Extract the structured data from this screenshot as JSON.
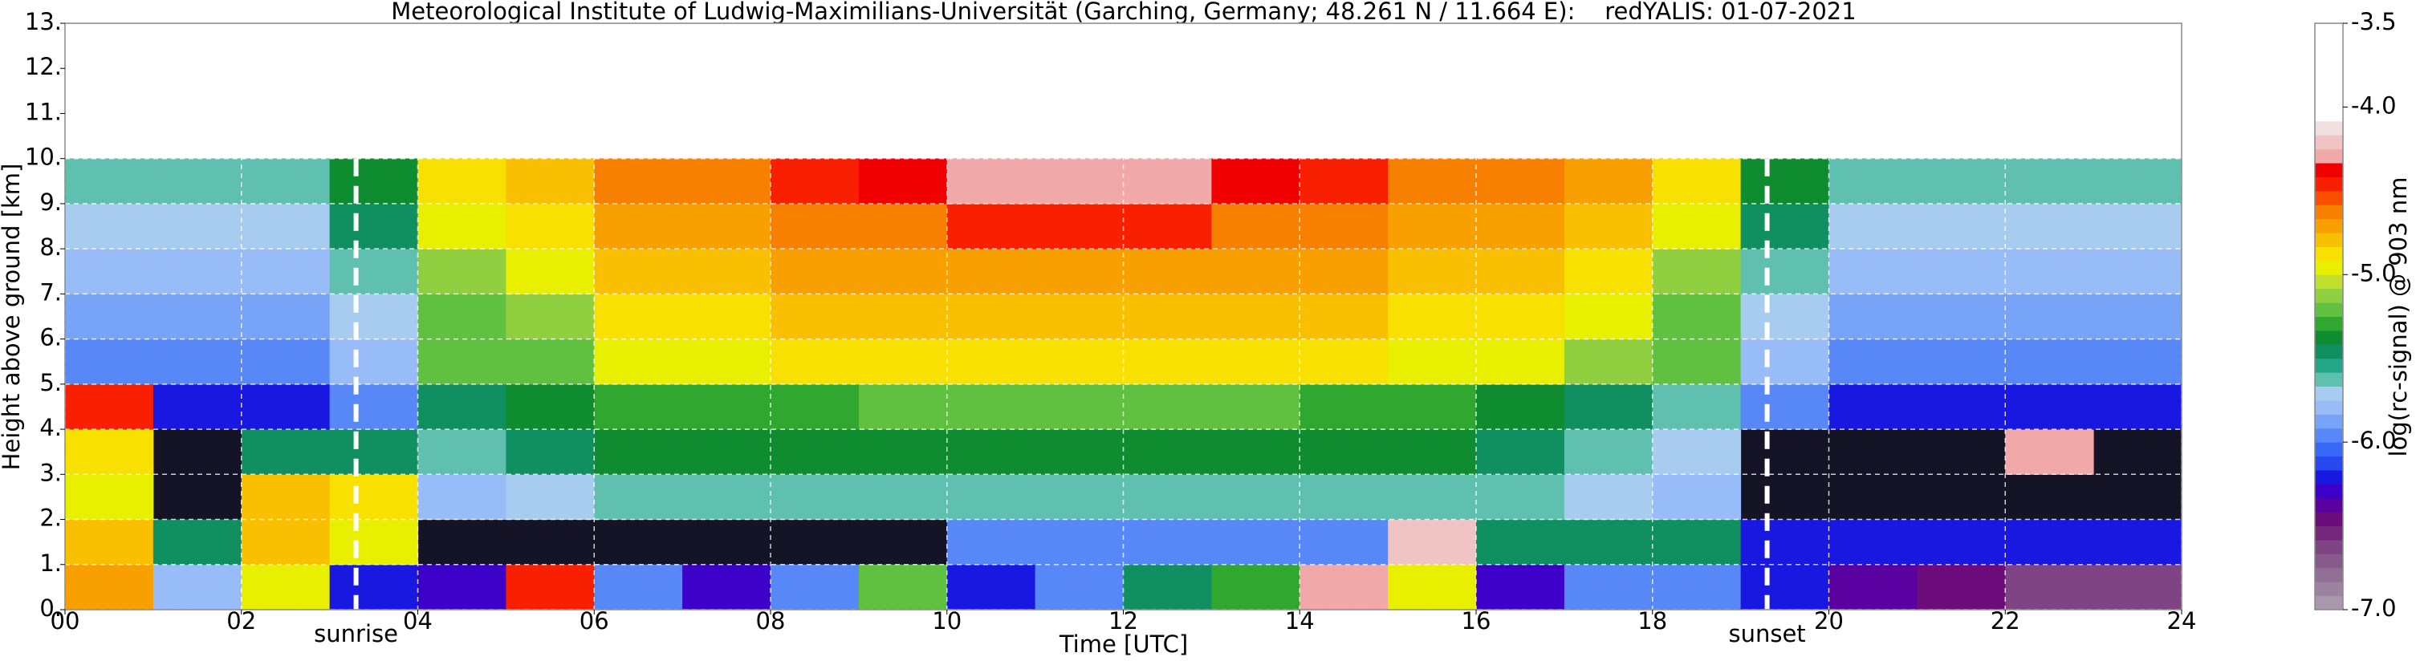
{
  "chart_data": {
    "type": "heatmap",
    "title": "Meteorological Institute of Ludwig-Maximilians-Universität (Garching, Germany; 48.261 N / 11.664 E):    redYALIS: 01-07-2021",
    "xlabel": "Time [UTC]",
    "ylabel": "Height above ground [km]",
    "colorbar_label": "log(rc-signal) @ 903 nm",
    "xlim": [
      0,
      24
    ],
    "ylim": [
      0,
      13
    ],
    "xticks": [
      {
        "value": 0,
        "label": "00"
      },
      {
        "value": 2,
        "label": "02"
      },
      {
        "value": 4,
        "label": "04"
      },
      {
        "value": 6,
        "label": "06"
      },
      {
        "value": 8,
        "label": "08"
      },
      {
        "value": 10,
        "label": "10"
      },
      {
        "value": 12,
        "label": "12"
      },
      {
        "value": 14,
        "label": "14"
      },
      {
        "value": 16,
        "label": "16"
      },
      {
        "value": 18,
        "label": "18"
      },
      {
        "value": 20,
        "label": "20"
      },
      {
        "value": 22,
        "label": "22"
      },
      {
        "value": 24,
        "label": "24"
      }
    ],
    "yticks": [
      {
        "value": 0,
        "label": "0."
      },
      {
        "value": 1,
        "label": "1."
      },
      {
        "value": 2,
        "label": "2."
      },
      {
        "value": 3,
        "label": "3."
      },
      {
        "value": 4,
        "label": "4."
      },
      {
        "value": 5,
        "label": "5."
      },
      {
        "value": 6,
        "label": "6."
      },
      {
        "value": 7,
        "label": "7."
      },
      {
        "value": 8,
        "label": "8."
      },
      {
        "value": 9,
        "label": "9."
      },
      {
        "value": 10,
        "label": "10."
      },
      {
        "value": 11,
        "label": "11."
      },
      {
        "value": 12,
        "label": "12."
      },
      {
        "value": 13,
        "label": "13."
      }
    ],
    "grid": true,
    "x": [
      0,
      1,
      2,
      3,
      4,
      5,
      6,
      7,
      8,
      9,
      10,
      11,
      12,
      13,
      14,
      15,
      16,
      17,
      18,
      19,
      20,
      21,
      22,
      23,
      24
    ],
    "y": [
      0,
      1,
      2,
      3,
      4,
      5,
      6,
      7,
      8,
      9,
      10
    ],
    "values": [
      [
        -4.7,
        -5.8,
        -5.0,
        -6.2,
        -6.3,
        -4.5,
        -6.0,
        -6.3,
        -6.0,
        -5.2,
        -6.2,
        -6.0,
        -5.5,
        -5.3,
        -4.3,
        -5.0,
        -6.3,
        -6.0,
        -6.0,
        -6.2,
        -6.4,
        -6.5,
        -6.6,
        -6.6
      ],
      [
        -4.8,
        -5.5,
        -4.8,
        -5.0,
        null,
        null,
        null,
        null,
        null,
        null,
        -6.0,
        -6.0,
        -6.0,
        -6.0,
        -6.0,
        -4.2,
        -5.5,
        -5.5,
        -5.5,
        -6.2,
        -6.2,
        -6.2,
        -6.2,
        -6.2
      ],
      [
        -5.0,
        null,
        -4.8,
        -4.9,
        -5.8,
        -5.7,
        -5.6,
        -5.6,
        -5.6,
        -5.6,
        -5.6,
        -5.6,
        -5.6,
        -5.6,
        -5.6,
        -5.6,
        -5.6,
        -5.7,
        -5.8,
        null,
        null,
        null,
        null,
        null
      ],
      [
        -4.9,
        null,
        -5.5,
        -5.5,
        -5.6,
        -5.5,
        -5.4,
        -5.4,
        -5.4,
        -5.4,
        -5.4,
        -5.4,
        -5.4,
        -5.4,
        -5.4,
        -5.4,
        -5.5,
        -5.6,
        -5.7,
        null,
        null,
        null,
        -4.3,
        null
      ],
      [
        -4.5,
        -6.2,
        -6.2,
        -6.0,
        -5.5,
        -5.4,
        -5.3,
        -5.3,
        -5.3,
        -5.2,
        -5.2,
        -5.2,
        -5.2,
        -5.2,
        -5.3,
        -5.3,
        -5.4,
        -5.5,
        -5.6,
        -6.0,
        -6.2,
        -6.2,
        -6.2,
        -6.2
      ],
      [
        -6.0,
        -6.0,
        -6.0,
        -5.8,
        -5.2,
        -5.2,
        -5.0,
        -5.0,
        -4.9,
        -4.9,
        -4.9,
        -4.9,
        -4.9,
        -4.9,
        -4.9,
        -5.0,
        -5.0,
        -5.1,
        -5.2,
        -5.8,
        -6.0,
        -6.0,
        -6.0,
        -6.0
      ],
      [
        -5.9,
        -5.9,
        -5.9,
        -5.7,
        -5.2,
        -5.1,
        -4.9,
        -4.9,
        -4.8,
        -4.8,
        -4.8,
        -4.8,
        -4.8,
        -4.8,
        -4.8,
        -4.9,
        -4.9,
        -5.0,
        -5.2,
        -5.7,
        -5.9,
        -5.9,
        -5.9,
        -5.9
      ],
      [
        -5.8,
        -5.8,
        -5.8,
        -5.6,
        -5.1,
        -5.0,
        -4.8,
        -4.8,
        -4.7,
        -4.7,
        -4.7,
        -4.7,
        -4.7,
        -4.7,
        -4.7,
        -4.8,
        -4.8,
        -4.9,
        -5.1,
        -5.6,
        -5.8,
        -5.8,
        -5.8,
        -5.8
      ],
      [
        -5.7,
        -5.7,
        -5.7,
        -5.5,
        -5.0,
        -4.9,
        -4.7,
        -4.7,
        -4.6,
        -4.6,
        -4.5,
        -4.5,
        -4.5,
        -4.6,
        -4.6,
        -4.7,
        -4.7,
        -4.8,
        -5.0,
        -5.5,
        -5.7,
        -5.7,
        -5.7,
        -5.7
      ],
      [
        -5.6,
        -5.6,
        -5.6,
        -5.4,
        -4.9,
        -4.8,
        -4.6,
        -4.6,
        -4.5,
        -4.4,
        -4.3,
        -4.3,
        -4.3,
        -4.4,
        -4.5,
        -4.6,
        -4.6,
        -4.7,
        -4.9,
        -5.4,
        -5.6,
        -5.6,
        -5.6,
        -5.6
      ]
    ],
    "background": "#141426",
    "clim": [
      -7,
      -3.5
    ],
    "cticks": [
      {
        "value": -7,
        "label": "-7.0"
      },
      {
        "value": -6,
        "label": "-6.0"
      },
      {
        "value": -5,
        "label": "-5.0"
      },
      {
        "value": -4,
        "label": "-4.0"
      },
      -3.5
    ],
    "colors": [
      "#a898ac",
      "#9c84a0",
      "#927096",
      "#885a8c",
      "#7e4484",
      "#74287c",
      "#6c0c7a",
      "#5a00a0",
      "#3c00c8",
      "#1818e0",
      "#2848f0",
      "#3868f8",
      "#5888f8",
      "#78a4f8",
      "#98bcf8",
      "#a8ccf0",
      "#60c0b0",
      "#20a888",
      "#109060",
      "#108c30",
      "#30a830",
      "#60c040",
      "#90d040",
      "#c0e030",
      "#e8f000",
      "#f8e000",
      "#f8c000",
      "#f8a000",
      "#f88000",
      "#f85000",
      "#f82000",
      "#f00000",
      "#f0a8a8",
      "#f0c4c4",
      "#f0e0e0",
      "#ffffff",
      "#ffffff",
      "#ffffff",
      "#ffffff",
      "#ffffff",
      "#ffffff",
      "#ffffff"
    ],
    "annotations": [
      {
        "text": "sunrise",
        "x": 3.3
      },
      {
        "text": "sunset",
        "x": 19.3
      }
    ]
  }
}
